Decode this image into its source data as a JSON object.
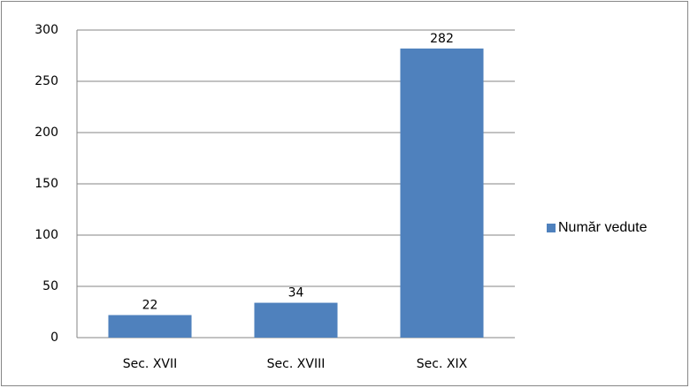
{
  "chart_data": {
    "type": "bar",
    "categories": [
      "Sec. XVII",
      "Sec. XVIII",
      "Sec. XIX"
    ],
    "series": [
      {
        "name": "Număr vedute",
        "color": "#4f81bd",
        "values": [
          22,
          34,
          282
        ]
      }
    ],
    "ylim": [
      0,
      300
    ],
    "yticks": [
      0,
      50,
      100,
      150,
      200,
      250,
      300
    ],
    "grid": true,
    "legend": "right"
  }
}
